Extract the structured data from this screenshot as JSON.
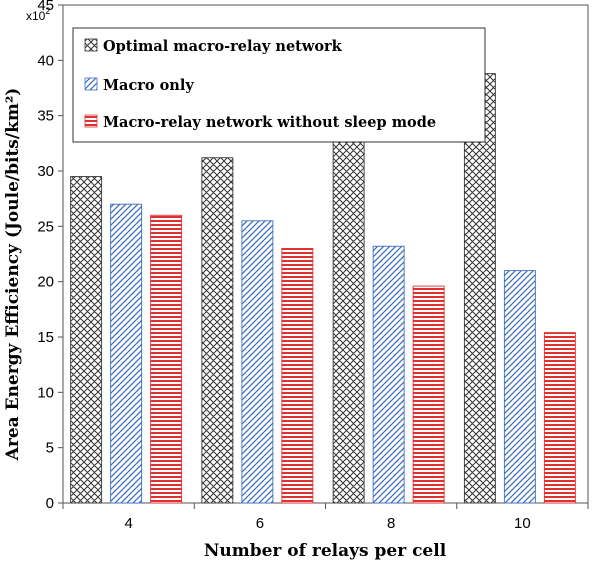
{
  "chart_data": {
    "type": "bar",
    "categories": [
      "4",
      "6",
      "8",
      "10"
    ],
    "series": [
      {
        "name": "Optimal macro-relay network",
        "values": [
          29.5,
          31.2,
          33.9,
          38.8
        ],
        "color": "#3a3a3a",
        "pattern": "crosshatch"
      },
      {
        "name": "Macro only",
        "values": [
          27.0,
          25.5,
          23.2,
          21.0
        ],
        "color": "#3f6fc2",
        "pattern": "diagonal"
      },
      {
        "name": "Macro-relay network without sleep mode",
        "values": [
          26.0,
          23.0,
          19.6,
          15.4
        ],
        "color": "#e23030",
        "pattern": "horizontal"
      }
    ],
    "xlabel": "Number of  relays per cell",
    "ylabel": "Area Energy Efficiency (Joule/bits/km²)",
    "y_multiplier_base": "x10",
    "y_multiplier_exp": "2",
    "ylim": [
      0,
      45
    ],
    "yticks": [
      "0",
      "5",
      "10",
      "15",
      "20",
      "25",
      "30",
      "35",
      "40",
      "45"
    ],
    "grid": false,
    "legend_position": "top-left"
  }
}
